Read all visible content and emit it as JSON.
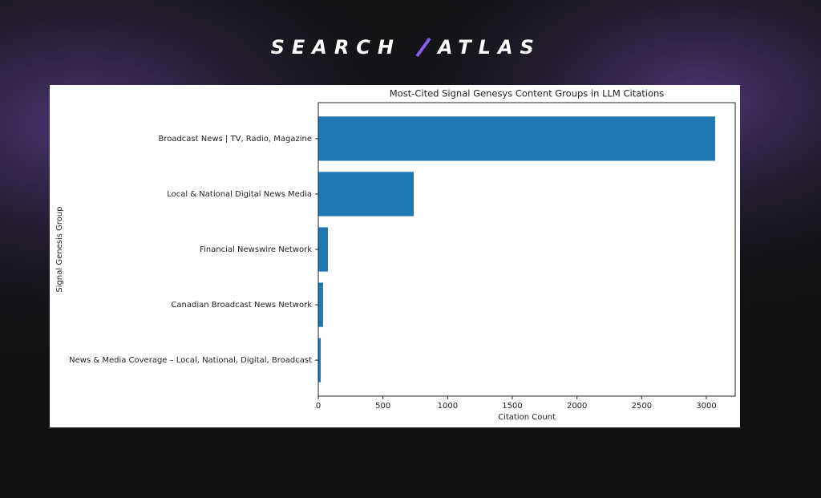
{
  "logo": {
    "left": "SEARCH",
    "right": "ATLAS"
  },
  "chart_data": {
    "type": "barh",
    "title": "Most-Cited Signal Genesys Content Groups in LLM Citations",
    "x_label": "Citation Count",
    "y_label": "Signal Genesis Group",
    "categories": [
      "Broadcast News | TV, Radio, Magazine",
      "Local & National Digital News Media",
      "Financial Newswire Network",
      "Canadian Broadcast News Network",
      "News & Media Coverage – Local, National, Digital, Broadcast"
    ],
    "values": [
      3068,
      738,
      74,
      37,
      19
    ],
    "color": "#1f77b4",
    "xlim": [
      0,
      3223
    ],
    "xticks": [
      0,
      500,
      1000,
      1500,
      2000,
      2500,
      3000
    ]
  }
}
